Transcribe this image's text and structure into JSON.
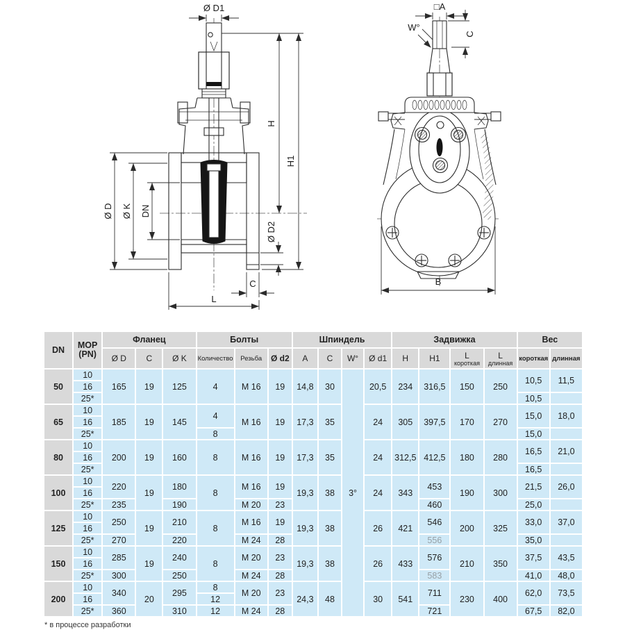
{
  "drawing": {
    "left_view_labels": {
      "d1": "Ø D1",
      "h": "H",
      "h1": "H1",
      "d": "Ø D",
      "k": "Ø K",
      "dn": "DN",
      "d2": "Ø D2",
      "c": "C",
      "l": "L"
    },
    "right_view_labels": {
      "a": "□A",
      "w": "W°",
      "c": "C",
      "b": "B"
    }
  },
  "table": {
    "header": {
      "dn": "DN",
      "mop_line1": "MOP",
      "mop_line2": "(PN)",
      "groups": [
        {
          "label": "Фланец",
          "span": 3
        },
        {
          "label": "Болты",
          "span": 3
        },
        {
          "label": "Шпиндель",
          "span": 4
        },
        {
          "label": "Задвижка",
          "span": 4
        },
        {
          "label": "Вес",
          "span": 2
        }
      ],
      "cols": [
        {
          "label": "Ø D"
        },
        {
          "label": "C"
        },
        {
          "label": "Ø K"
        },
        {
          "label": "Количество",
          "small": true
        },
        {
          "label": "Резьба",
          "small": true
        },
        {
          "label": "Ø d2",
          "bold": true
        },
        {
          "label": "A"
        },
        {
          "label": "C"
        },
        {
          "label": "W°"
        },
        {
          "label": "Ø d1"
        },
        {
          "label": "H"
        },
        {
          "label": "H1"
        },
        {
          "label": "L",
          "sub": "короткая"
        },
        {
          "label": "L",
          "sub": "длинная"
        },
        {
          "label": "короткая",
          "small": true,
          "bold": true
        },
        {
          "label": "длинная",
          "small": true,
          "bold": true
        }
      ]
    },
    "spindle_w_value": "3°",
    "groups": [
      {
        "dn": "50",
        "pn": [
          "10",
          "16",
          "25*"
        ],
        "d": [
          [
            "165",
            3
          ]
        ],
        "c": [
          [
            "19",
            3
          ]
        ],
        "k": [
          [
            "125",
            3
          ]
        ],
        "qty": [
          [
            "4",
            3
          ]
        ],
        "thread": [
          [
            "M 16",
            3
          ]
        ],
        "d2": [
          [
            "19",
            3
          ]
        ],
        "a": [
          [
            "14,8",
            3
          ]
        ],
        "c2": [
          [
            "30",
            3
          ]
        ],
        "d1": [
          [
            "20,5",
            3
          ]
        ],
        "h": [
          [
            "234",
            3
          ]
        ],
        "h1": [
          [
            "316,5",
            3
          ]
        ],
        "lk": [
          [
            "150",
            3
          ]
        ],
        "ld": [
          [
            "250",
            3
          ]
        ],
        "wk": [
          [
            "10,5",
            2
          ],
          [
            "10,5",
            1
          ]
        ],
        "wd": [
          [
            "11,5",
            2
          ],
          [
            "",
            1
          ]
        ]
      },
      {
        "dn": "65",
        "pn": [
          "10",
          "16",
          "25*"
        ],
        "d": [
          [
            "185",
            3
          ]
        ],
        "c": [
          [
            "19",
            3
          ]
        ],
        "k": [
          [
            "145",
            3
          ]
        ],
        "qty": [
          [
            "4",
            2
          ],
          [
            "8",
            1
          ]
        ],
        "thread": [
          [
            "M 16",
            3
          ]
        ],
        "d2": [
          [
            "19",
            3
          ]
        ],
        "a": [
          [
            "17,3",
            3
          ]
        ],
        "c2": [
          [
            "35",
            3
          ]
        ],
        "d1": [
          [
            "24",
            3
          ]
        ],
        "h": [
          [
            "305",
            3
          ]
        ],
        "h1": [
          [
            "397,5",
            3
          ]
        ],
        "lk": [
          [
            "170",
            3
          ]
        ],
        "ld": [
          [
            "270",
            3
          ]
        ],
        "wk": [
          [
            "15,0",
            2
          ],
          [
            "15,0",
            1
          ]
        ],
        "wd": [
          [
            "18,0",
            2
          ],
          [
            "",
            1
          ]
        ]
      },
      {
        "dn": "80",
        "pn": [
          "10",
          "16",
          "25*"
        ],
        "d": [
          [
            "200",
            3
          ]
        ],
        "c": [
          [
            "19",
            3
          ]
        ],
        "k": [
          [
            "160",
            3
          ]
        ],
        "qty": [
          [
            "8",
            3
          ]
        ],
        "thread": [
          [
            "M 16",
            3
          ]
        ],
        "d2": [
          [
            "19",
            3
          ]
        ],
        "a": [
          [
            "17,3",
            3
          ]
        ],
        "c2": [
          [
            "35",
            3
          ]
        ],
        "d1": [
          [
            "24",
            3
          ]
        ],
        "h": [
          [
            "312,5",
            3
          ]
        ],
        "h1": [
          [
            "412,5",
            3
          ]
        ],
        "lk": [
          [
            "180",
            3
          ]
        ],
        "ld": [
          [
            "280",
            3
          ]
        ],
        "wk": [
          [
            "16,5",
            2
          ],
          [
            "16,5",
            1
          ]
        ],
        "wd": [
          [
            "21,0",
            2
          ],
          [
            "",
            1
          ]
        ]
      },
      {
        "dn": "100",
        "pn": [
          "10",
          "16",
          "25*"
        ],
        "d": [
          [
            "220",
            2
          ],
          [
            "235",
            1
          ]
        ],
        "c": [
          [
            "19",
            3
          ]
        ],
        "k": [
          [
            "180",
            2
          ],
          [
            "190",
            1
          ]
        ],
        "qty": [
          [
            "8",
            3
          ]
        ],
        "thread": [
          [
            "M 16",
            2
          ],
          [
            "M 20",
            1
          ]
        ],
        "d2": [
          [
            "19",
            2
          ],
          [
            "23",
            1
          ]
        ],
        "a": [
          [
            "19,3",
            3
          ]
        ],
        "c2": [
          [
            "38",
            3
          ]
        ],
        "d1": [
          [
            "24",
            3
          ]
        ],
        "h": [
          [
            "343",
            3
          ]
        ],
        "h1": [
          [
            "453",
            2
          ],
          [
            "460",
            1
          ]
        ],
        "lk": [
          [
            "190",
            3
          ]
        ],
        "ld": [
          [
            "300",
            3
          ]
        ],
        "wk": [
          [
            "21,5",
            2
          ],
          [
            "25,0",
            1
          ]
        ],
        "wd": [
          [
            "26,0",
            2
          ],
          [
            "",
            1
          ]
        ]
      },
      {
        "dn": "125",
        "pn": [
          "10",
          "16",
          "25*"
        ],
        "d": [
          [
            "250",
            2
          ],
          [
            "270",
            1
          ]
        ],
        "c": [
          [
            "19",
            3
          ]
        ],
        "k": [
          [
            "210",
            2
          ],
          [
            "220",
            1
          ]
        ],
        "qty": [
          [
            "8",
            3
          ]
        ],
        "thread": [
          [
            "M 16",
            2
          ],
          [
            "M 24",
            1
          ]
        ],
        "d2": [
          [
            "19",
            2
          ],
          [
            "28",
            1
          ]
        ],
        "a": [
          [
            "19,3",
            3
          ]
        ],
        "c2": [
          [
            "38",
            3
          ]
        ],
        "d1": [
          [
            "26",
            3
          ]
        ],
        "h": [
          [
            "421",
            3
          ]
        ],
        "h1": [
          [
            "546",
            2
          ],
          [
            "556",
            1,
            "muted"
          ]
        ],
        "lk": [
          [
            "200",
            3
          ]
        ],
        "ld": [
          [
            "325",
            3
          ]
        ],
        "wk": [
          [
            "33,0",
            2
          ],
          [
            "35,0",
            1
          ]
        ],
        "wd": [
          [
            "37,0",
            2
          ],
          [
            "",
            1
          ]
        ]
      },
      {
        "dn": "150",
        "pn": [
          "10",
          "16",
          "25*"
        ],
        "d": [
          [
            "285",
            2
          ],
          [
            "300",
            1
          ]
        ],
        "c": [
          [
            "19",
            3
          ]
        ],
        "k": [
          [
            "240",
            2
          ],
          [
            "250",
            1
          ]
        ],
        "qty": [
          [
            "8",
            3
          ]
        ],
        "thread": [
          [
            "M 20",
            2
          ],
          [
            "M 24",
            1
          ]
        ],
        "d2": [
          [
            "23",
            2
          ],
          [
            "28",
            1
          ]
        ],
        "a": [
          [
            "19,3",
            3
          ]
        ],
        "c2": [
          [
            "38",
            3
          ]
        ],
        "d1": [
          [
            "26",
            3
          ]
        ],
        "h": [
          [
            "433",
            3
          ]
        ],
        "h1": [
          [
            "576",
            2
          ],
          [
            "583",
            1,
            "muted"
          ]
        ],
        "lk": [
          [
            "210",
            3
          ]
        ],
        "ld": [
          [
            "350",
            3
          ]
        ],
        "wk": [
          [
            "37,5",
            2
          ],
          [
            "41,0",
            1
          ]
        ],
        "wd": [
          [
            "43,5",
            2
          ],
          [
            "48,0",
            1
          ]
        ]
      },
      {
        "dn": "200",
        "pn": [
          "10",
          "16",
          "25*"
        ],
        "d": [
          [
            "340",
            2
          ],
          [
            "360",
            1
          ]
        ],
        "c": [
          [
            "20",
            3
          ]
        ],
        "k": [
          [
            "295",
            2
          ],
          [
            "310",
            1
          ]
        ],
        "qty": [
          [
            "8",
            1
          ],
          [
            "12",
            1
          ],
          [
            "12",
            1
          ]
        ],
        "thread": [
          [
            "M 20",
            2
          ],
          [
            "M 24",
            1
          ]
        ],
        "d2": [
          [
            "23",
            2
          ],
          [
            "28",
            1
          ]
        ],
        "a": [
          [
            "24,3",
            3
          ]
        ],
        "c2": [
          [
            "48",
            3
          ]
        ],
        "d1": [
          [
            "30",
            3
          ]
        ],
        "h": [
          [
            "541",
            3
          ]
        ],
        "h1": [
          [
            "711",
            2
          ],
          [
            "721",
            1
          ]
        ],
        "lk": [
          [
            "230",
            3
          ]
        ],
        "ld": [
          [
            "400",
            3
          ]
        ],
        "wk": [
          [
            "62,0",
            2
          ],
          [
            "67,5",
            1
          ]
        ],
        "wd": [
          [
            "73,5",
            2
          ],
          [
            "82,0",
            1
          ]
        ]
      }
    ],
    "footnote": "* в процессе разработки"
  }
}
